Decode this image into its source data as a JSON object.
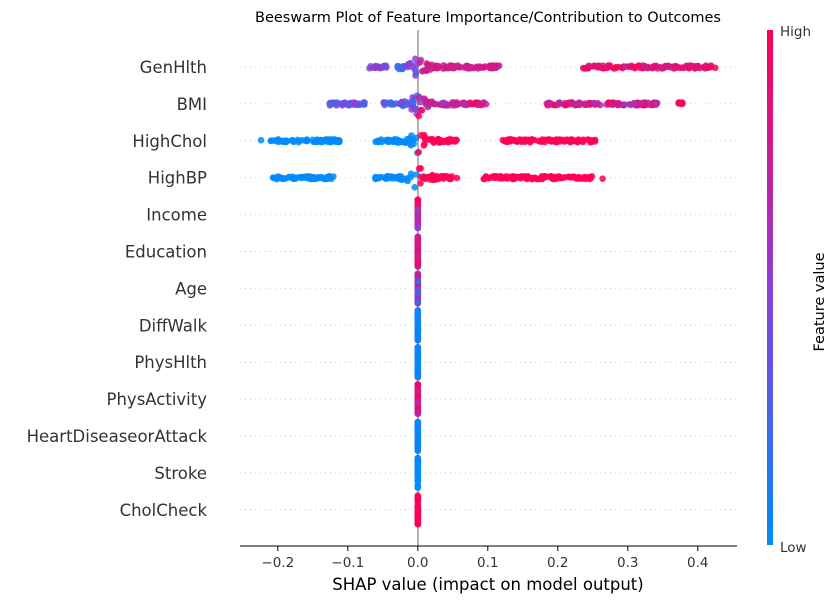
{
  "chart_data": {
    "type": "scatter",
    "title": "Beeswarm Plot of Feature Importance/Contribution to Outcomes",
    "xlabel": "SHAP value (impact on model output)",
    "xlim": [
      -0.254,
      0.456
    ],
    "xticks": [
      "−0.2",
      "−0.1",
      "0.0",
      "0.1",
      "0.2",
      "0.3",
      "0.4"
    ],
    "xtick_values": [
      -0.2,
      -0.1,
      0.0,
      0.1,
      0.2,
      0.3,
      0.4
    ],
    "grid": "horizontal dotted per feature",
    "colorbar": {
      "label": "Feature value",
      "high_label": "High",
      "low_label": "Low",
      "low_color": "#008bfb",
      "mid_color": "#8c3fd6",
      "high_color": "#ff0052"
    },
    "features": [
      {
        "name": "GenHlth",
        "clusters": [
          {
            "from": -0.069,
            "to": -0.043,
            "feature_value": [
              0.35,
              0.55
            ]
          },
          {
            "from": -0.029,
            "to": 0.0,
            "feature_value": [
              0.1,
              0.6
            ]
          },
          {
            "from": 0.0,
            "to": 0.117,
            "feature_value": [
              0.7,
              0.85
            ]
          },
          {
            "from": 0.236,
            "to": 0.42,
            "feature_value": [
              0.75,
              1.0
            ]
          },
          {
            "from": 0.425,
            "to": 0.425,
            "feature_value": [
              1.0,
              1.0
            ]
          }
        ]
      },
      {
        "name": "BMI",
        "clusters": [
          {
            "from": -0.126,
            "to": -0.073,
            "feature_value": [
              0.2,
              0.6
            ]
          },
          {
            "from": -0.049,
            "to": 0.0,
            "feature_value": [
              0.1,
              0.6
            ]
          },
          {
            "from": 0.0,
            "to": 0.099,
            "feature_value": [
              0.5,
              1.0
            ]
          },
          {
            "from": 0.184,
            "to": 0.343,
            "feature_value": [
              0.6,
              1.0
            ]
          },
          {
            "from": 0.37,
            "to": 0.38,
            "feature_value": [
              1.0,
              1.0
            ]
          }
        ]
      },
      {
        "name": "HighChol",
        "clusters": [
          {
            "from": -0.224,
            "to": -0.224,
            "feature_value": [
              0,
              0
            ]
          },
          {
            "from": -0.21,
            "to": -0.11,
            "feature_value": [
              0,
              0
            ]
          },
          {
            "from": -0.063,
            "to": 0.0,
            "feature_value": [
              0,
              0
            ]
          },
          {
            "from": 0.0,
            "to": 0.06,
            "feature_value": [
              1,
              1
            ]
          },
          {
            "from": 0.121,
            "to": 0.254,
            "feature_value": [
              1,
              1
            ]
          }
        ]
      },
      {
        "name": "HighBP",
        "clusters": [
          {
            "from": -0.21,
            "to": -0.12,
            "feature_value": [
              0,
              0
            ]
          },
          {
            "from": -0.063,
            "to": 0.0,
            "feature_value": [
              0,
              0
            ]
          },
          {
            "from": 0.0,
            "to": 0.05,
            "feature_value": [
              1,
              1
            ]
          },
          {
            "from": 0.056,
            "to": 0.056,
            "feature_value": [
              1,
              1
            ]
          },
          {
            "from": 0.093,
            "to": 0.25,
            "feature_value": [
              1,
              1
            ]
          },
          {
            "from": 0.264,
            "to": 0.264,
            "feature_value": [
              1,
              1
            ]
          }
        ]
      },
      {
        "name": "Income",
        "clusters": [
          {
            "from": 0.0,
            "to": 0.0,
            "feature_value": [
              0.5,
              1.0
            ]
          }
        ]
      },
      {
        "name": "Education",
        "clusters": [
          {
            "from": 0.0,
            "to": 0.0,
            "feature_value": [
              0.6,
              1.0
            ]
          }
        ]
      },
      {
        "name": "Age",
        "clusters": [
          {
            "from": 0.0,
            "to": 0.0,
            "feature_value": [
              0.1,
              0.9
            ]
          }
        ]
      },
      {
        "name": "DiffWalk",
        "clusters": [
          {
            "from": 0.0,
            "to": 0.0,
            "feature_value": [
              0.0,
              0.15
            ]
          }
        ]
      },
      {
        "name": "PhysHlth",
        "clusters": [
          {
            "from": 0.0,
            "to": 0.0,
            "feature_value": [
              0.0,
              0.1
            ]
          }
        ]
      },
      {
        "name": "PhysActivity",
        "clusters": [
          {
            "from": 0.0,
            "to": 0.0,
            "feature_value": [
              0.6,
              1.0
            ]
          }
        ]
      },
      {
        "name": "HeartDiseaseorAttack",
        "clusters": [
          {
            "from": 0.0,
            "to": 0.0,
            "feature_value": [
              0.0,
              0.1
            ]
          }
        ]
      },
      {
        "name": "Stroke",
        "clusters": [
          {
            "from": 0.0,
            "to": 0.0,
            "feature_value": [
              0.0,
              0.0
            ]
          }
        ]
      },
      {
        "name": "CholCheck",
        "clusters": [
          {
            "from": 0.0,
            "to": 0.0,
            "feature_value": [
              1.0,
              1.0
            ]
          }
        ]
      }
    ]
  }
}
